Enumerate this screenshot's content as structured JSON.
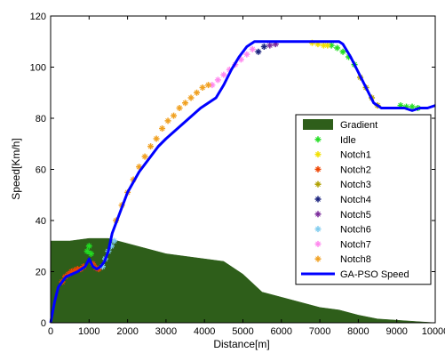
{
  "chart_data": {
    "type": "line",
    "xlabel": "Distance[m]",
    "ylabel": "Speed[Km/h]",
    "xlim": [
      0,
      10000
    ],
    "ylim": [
      0,
      120
    ],
    "x_ticks": [
      0,
      1000,
      2000,
      3000,
      4000,
      5000,
      6000,
      7000,
      8000,
      9000,
      10000
    ],
    "y_ticks": [
      0,
      20,
      40,
      60,
      80,
      100,
      120
    ],
    "x_tick_labels": [
      "0",
      "1000",
      "2000",
      "3000",
      "4000",
      "5000",
      "6000",
      "7000",
      "8000",
      "9000",
      "10000"
    ],
    "y_tick_labels": [
      "0",
      "20",
      "40",
      "60",
      "80",
      "100",
      "120"
    ],
    "legend_position": "bottom-right",
    "gradient": {
      "name": "Gradient",
      "color": "#2e5e1a",
      "x": [
        0,
        500,
        1000,
        1500,
        2000,
        2500,
        3000,
        3500,
        4000,
        4500,
        5000,
        5500,
        6000,
        6500,
        7000,
        7500,
        8000,
        8500,
        9000,
        9500,
        10000
      ],
      "y": [
        32,
        32,
        33,
        33,
        31,
        29,
        27,
        26,
        25,
        24,
        19,
        12,
        10,
        8,
        6,
        5,
        3,
        1.5,
        1,
        0.5,
        0
      ]
    },
    "speed_line": {
      "name": "GA-PSO Speed",
      "color": "#0000ff",
      "x": [
        0,
        100,
        200,
        400,
        700,
        900,
        1000,
        1100,
        1200,
        1300,
        1400,
        1500,
        1600,
        1800,
        2000,
        2300,
        2600,
        2800,
        3000,
        3300,
        3600,
        3900,
        4100,
        4300,
        4500,
        4700,
        4900,
        5100,
        5300,
        5500,
        6000,
        6500,
        7000,
        7500,
        7600,
        7800,
        8000,
        8200,
        8400,
        8600,
        8800,
        9000,
        9200,
        9400,
        9600,
        9800,
        10000
      ],
      "y": [
        0,
        8,
        14,
        18,
        20,
        22,
        25,
        22,
        21,
        22,
        24,
        28,
        35,
        43,
        51,
        59,
        65,
        69,
        72,
        76,
        80,
        84,
        86,
        88,
        93,
        99,
        104,
        108,
        110,
        110,
        110,
        110,
        110,
        110,
        109,
        104,
        98,
        92,
        86,
        84,
        84,
        84,
        84,
        83,
        84,
        84,
        85
      ]
    },
    "notch_series": [
      {
        "name": "Idle",
        "color": "#22dd22",
        "x": [
          950,
          1000,
          1050,
          7300,
          7450,
          7600,
          7750,
          7900,
          9100,
          9250,
          9400,
          9550
        ],
        "y": [
          28,
          30,
          27,
          108.5,
          107.5,
          106,
          104,
          101,
          85,
          84.5,
          84.5,
          84
        ]
      },
      {
        "name": "Notch1",
        "color": "#f2e000",
        "x": [
          6800,
          6950,
          7100,
          7200
        ],
        "y": [
          109.5,
          109,
          108.5,
          108.5
        ]
      },
      {
        "name": "Notch2",
        "color": "#ee4400",
        "x": [
          300,
          380,
          460,
          540,
          620,
          700,
          780,
          860,
          1100,
          1180,
          1250
        ],
        "y": [
          16,
          18,
          19,
          20,
          20.5,
          21,
          21,
          22,
          23,
          21.5,
          21
        ]
      },
      {
        "name": "Notch3",
        "color": "#b0a000",
        "x": [
          8050,
          8200,
          8350,
          8500
        ],
        "y": [
          96,
          92,
          88,
          85
        ]
      },
      {
        "name": "Notch4",
        "color": "#1a237e",
        "x": [
          5400,
          5550
        ],
        "y": [
          106,
          108
        ]
      },
      {
        "name": "Notch5",
        "color": "#7a2a9a",
        "x": [
          5700,
          5850
        ],
        "y": [
          108.5,
          109
        ]
      },
      {
        "name": "Notch6",
        "color": "#80ccee",
        "x": [
          1350,
          1420,
          1500,
          1580,
          1650
        ],
        "y": [
          22,
          25,
          28,
          30,
          32
        ]
      },
      {
        "name": "Notch7",
        "color": "#ff88ee",
        "x": [
          4200,
          4350,
          4500,
          4650,
          4800,
          4950,
          5100,
          5250
        ],
        "y": [
          93,
          95,
          97,
          99,
          101,
          103,
          105,
          107
        ]
      },
      {
        "name": "Notch8",
        "color": "#f0a020",
        "x": [
          1700,
          1850,
          2000,
          2150,
          2300,
          2450,
          2600,
          2750,
          2900,
          3050,
          3200,
          3350,
          3500,
          3650,
          3800,
          3950,
          4100
        ],
        "y": [
          40,
          46,
          51,
          56,
          61,
          65,
          69,
          72,
          76,
          79,
          81,
          84,
          86,
          88,
          90,
          92,
          93
        ]
      }
    ]
  }
}
